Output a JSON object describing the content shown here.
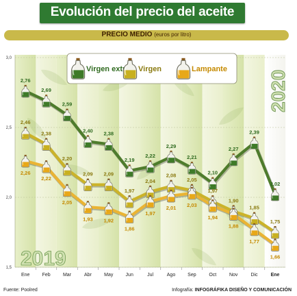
{
  "header": {
    "title": "Evolución del precio del aceite",
    "subtitle_main": "PRECIO MEDIO",
    "subtitle_unit": "(euros por litro)"
  },
  "year_labels": {
    "main": "2019",
    "new": "2020"
  },
  "footer": {
    "source": "Fuente: Poolred",
    "credit_prefix": "Infografía: ",
    "credit_name": "INFOGRÁFIKA DISEÑO Y COMUNICACIÓN"
  },
  "colors": {
    "virgen_extra": "#3e7a28",
    "virgen": "#c8b020",
    "lampante": "#e8a818",
    "title_bg": "#2f7a31",
    "subtitle_bg": "#c9b94a"
  },
  "icons": [
    "oil-bottle-icon",
    "olive-leaf-background"
  ],
  "chart_data": {
    "type": "line",
    "title": "Evolución del precio del aceite",
    "subtitle": "PRECIO MEDIO (euros por litro)",
    "categories": [
      "Ene",
      "Feb",
      "Mar",
      "Abr",
      "May",
      "Jun",
      "Jul",
      "Ago",
      "Sep",
      "Oct",
      "Nov",
      "Dic",
      "Ene"
    ],
    "ylim": [
      1.5,
      3.0
    ],
    "yticks": [
      "3,0",
      "2,5",
      "2,0",
      "1,5"
    ],
    "grid": true,
    "legend": "top",
    "series": [
      {
        "name": "Virgen extra",
        "values": [
          2.76,
          2.69,
          2.59,
          2.4,
          2.38,
          2.19,
          2.22,
          2.29,
          2.21,
          2.1,
          2.27,
          2.39,
          2.02
        ],
        "labels": [
          "2,76",
          "2,69",
          "2,59",
          "2,40",
          "2,38",
          "2,19",
          "2,22",
          "2,29",
          "2,21",
          "2,10",
          "2,27",
          "2,39",
          "2,02"
        ]
      },
      {
        "name": "Virgen",
        "values": [
          2.46,
          2.38,
          2.2,
          2.09,
          2.09,
          1.97,
          2.04,
          2.08,
          2.05,
          1.97,
          1.9,
          1.85,
          1.75
        ],
        "labels": [
          "2,46",
          "2,38",
          "2,20",
          "2,09",
          "2,09",
          "1,97",
          "2,04",
          "2,08",
          "2,05",
          "1,97",
          "1,90",
          "1,85",
          "1,75"
        ]
      },
      {
        "name": "Lampante",
        "values": [
          2.26,
          2.22,
          2.05,
          1.93,
          1.92,
          1.86,
          1.97,
          2.01,
          2.03,
          1.94,
          1.88,
          1.77,
          1.66
        ],
        "labels": [
          "2,26",
          "2,22",
          "2,05",
          "1,93",
          "1,92",
          "1,86",
          "1,97",
          "2,01",
          "2,03",
          "1,94",
          "1,88",
          "1,77",
          "1,66"
        ]
      }
    ]
  }
}
